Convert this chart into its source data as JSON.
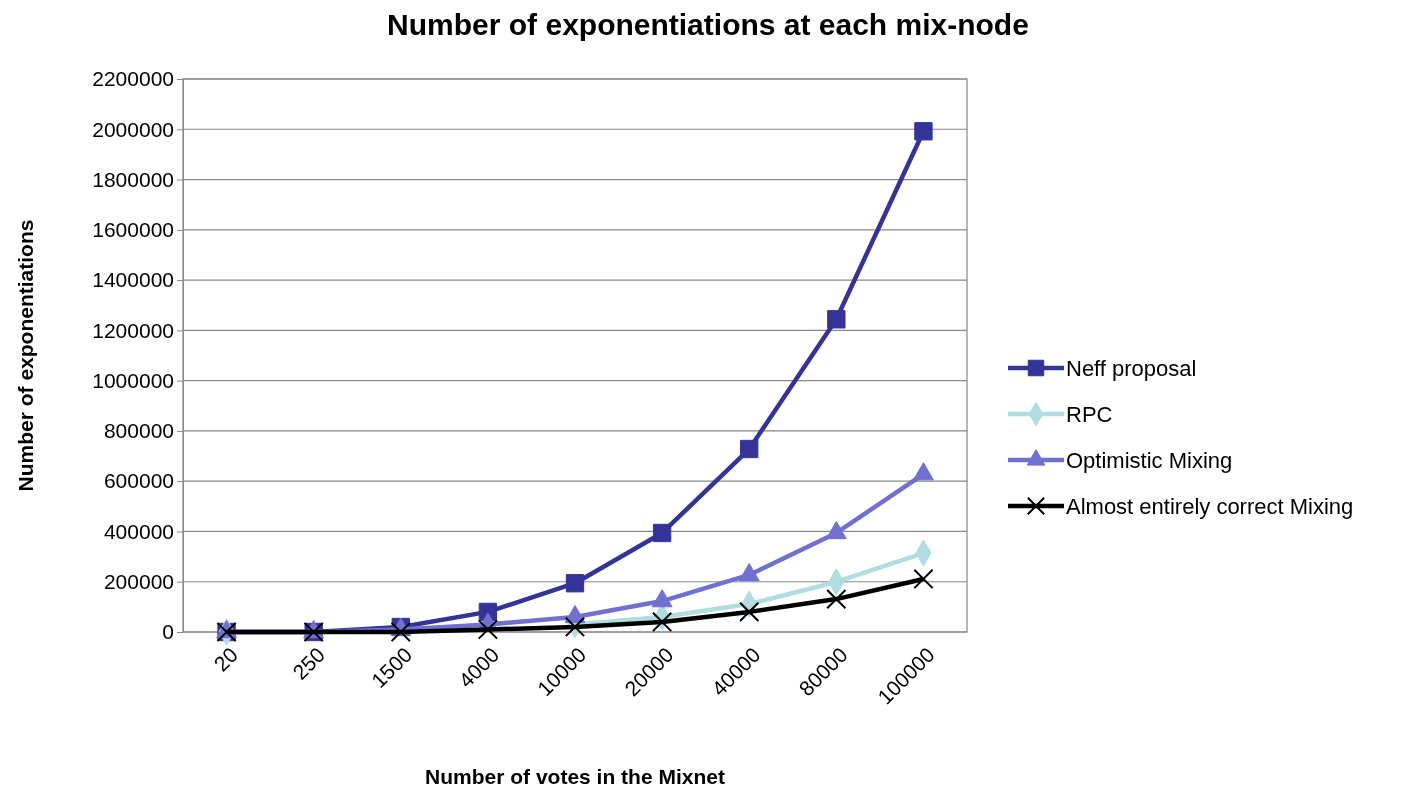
{
  "chart_data": {
    "type": "line",
    "title": "Number of exponentiations at each mix-node",
    "xlabel": "Number of votes in the Mixnet",
    "ylabel": "Number of exponentiations",
    "categories": [
      "20",
      "250",
      "1500",
      "4000",
      "10000",
      "20000",
      "40000",
      "80000",
      "100000"
    ],
    "series": [
      {
        "name": "Neff proposal",
        "color": "#333399",
        "marker": "square",
        "values": [
          0,
          0,
          20000,
          80000,
          194000,
          394000,
          728000,
          1244000,
          1992000
        ]
      },
      {
        "name": "RPC",
        "color": "#b0dde0",
        "marker": "diamond",
        "values": [
          0,
          null,
          null,
          null,
          30000,
          60000,
          111000,
          199000,
          314000
        ]
      },
      {
        "name": "Optimistic Mixing",
        "color": "#7070d0",
        "marker": "triangle",
        "values": [
          0,
          0,
          10000,
          30000,
          60000,
          123000,
          227000,
          394000,
          628000
        ]
      },
      {
        "name": "Almost entirely correct Mixing",
        "color": "#000000",
        "marker": "cross",
        "values": [
          0,
          0,
          0,
          10000,
          20000,
          40000,
          80000,
          131000,
          211000
        ]
      }
    ],
    "ylim": [
      0,
      2200000
    ],
    "yticks": [
      0,
      200000,
      400000,
      600000,
      800000,
      1000000,
      1200000,
      1400000,
      1600000,
      1800000,
      2000000,
      2200000
    ],
    "grid": "y",
    "legend": "right",
    "line_style": "solid"
  }
}
